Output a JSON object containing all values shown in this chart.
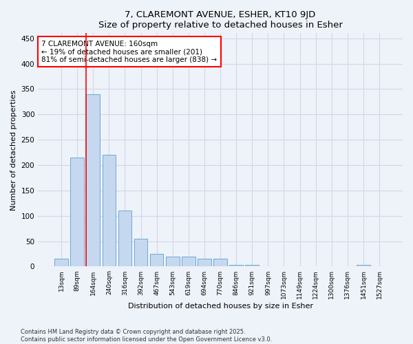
{
  "title1": "7, CLAREMONT AVENUE, ESHER, KT10 9JD",
  "title2": "Size of property relative to detached houses in Esher",
  "xlabel": "Distribution of detached houses by size in Esher",
  "ylabel": "Number of detached properties",
  "categories": [
    "13sqm",
    "89sqm",
    "164sqm",
    "240sqm",
    "316sqm",
    "392sqm",
    "467sqm",
    "543sqm",
    "619sqm",
    "694sqm",
    "770sqm",
    "846sqm",
    "921sqm",
    "997sqm",
    "1073sqm",
    "1149sqm",
    "1224sqm",
    "1300sqm",
    "1376sqm",
    "1451sqm",
    "1527sqm"
  ],
  "values": [
    15,
    215,
    340,
    220,
    110,
    55,
    25,
    20,
    20,
    15,
    15,
    3,
    3,
    0,
    0,
    0,
    0,
    0,
    0,
    3,
    0
  ],
  "bar_color": "#c5d8f0",
  "bar_edge_color": "#6aaad4",
  "vline_color": "red",
  "vline_x_index": 2,
  "annotation_text": "7 CLAREMONT AVENUE: 160sqm\n← 19% of detached houses are smaller (201)\n81% of semi-detached houses are larger (838) →",
  "annotation_box_color": "white",
  "annotation_box_edge": "red",
  "ylim": [
    0,
    460
  ],
  "yticks": [
    0,
    50,
    100,
    150,
    200,
    250,
    300,
    350,
    400,
    450
  ],
  "footer1": "Contains HM Land Registry data © Crown copyright and database right 2025.",
  "footer2": "Contains public sector information licensed under the Open Government Licence v3.0.",
  "background_color": "#eef2f9",
  "grid_color": "#d0d8e8"
}
